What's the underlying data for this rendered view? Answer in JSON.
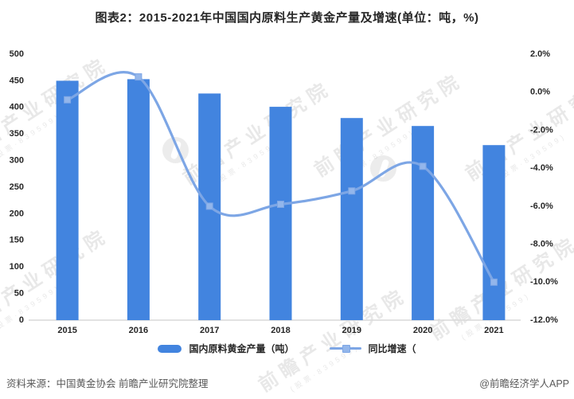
{
  "title": "图表2：2015-2021年中国国内原料生产黄金产量及增速(单位：吨，%)",
  "chart_data": {
    "type": "bar",
    "combo": "bar+line",
    "categories": [
      "2015",
      "2016",
      "2017",
      "2018",
      "2019",
      "2020",
      "2021"
    ],
    "series": [
      {
        "name": "国内原料黄金产量（吨）",
        "type": "bar",
        "axis": "left",
        "values": [
          450,
          453,
          426,
          401,
          380,
          365,
          329
        ]
      },
      {
        "name": "同比增速（",
        "type": "line",
        "axis": "right",
        "values": [
          -0.4,
          0.8,
          -6.0,
          -5.9,
          -5.2,
          -3.9,
          -10.0
        ]
      }
    ],
    "left_axis": {
      "min": 0,
      "max": 500,
      "step": 50,
      "ticks": [
        "500",
        "450",
        "400",
        "350",
        "300",
        "250",
        "200",
        "150",
        "100",
        "50",
        "0"
      ]
    },
    "right_axis": {
      "min": -12,
      "max": 2,
      "step": 2,
      "ticks": [
        "2.0%",
        "0.0%",
        "-2.0%",
        "-4.0%",
        "-6.0%",
        "-8.0%",
        "-10.0%",
        "-12.0%"
      ]
    },
    "grid": false,
    "legend_position": "bottom",
    "title": "图表2：2015-2021年中国国内原料生产黄金产量及增速(单位：吨，%)",
    "xlabel": "",
    "ylabel_left": "吨",
    "ylabel_right": "%"
  },
  "legend": {
    "bar_label": "国内原料黄金产量（吨）",
    "line_label": "同比增速（"
  },
  "footer": {
    "source": "资料来源：中国黄金协会 前瞻产业研究院整理",
    "credit": "@前瞻经济学人APP"
  },
  "watermark": {
    "text": "前瞻产业研究院",
    "subtext": "(股票·839599)"
  },
  "colors": {
    "bar": "#4284DF",
    "line": "#7DA6E5",
    "marker_fill": "#93B6EB",
    "marker_stroke": "#7DA6E5",
    "axis_line": "#D9D9D9",
    "tick_text": "#262626"
  }
}
